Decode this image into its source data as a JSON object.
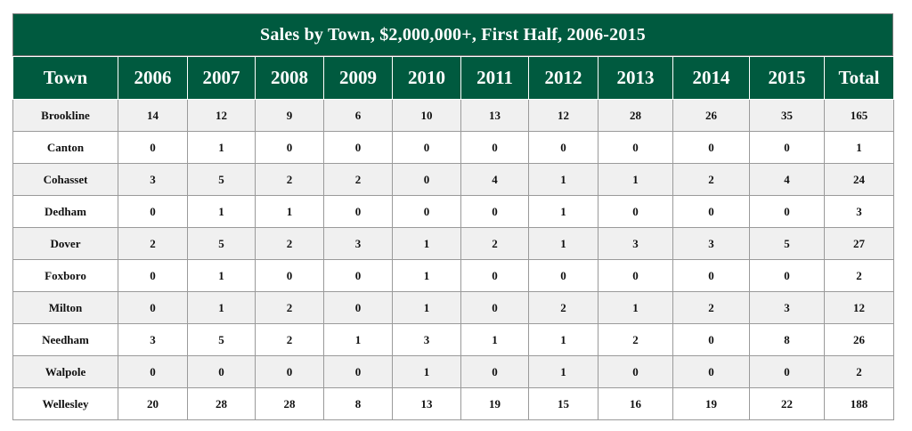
{
  "chart_data": {
    "type": "table",
    "title": "Sales by Town, $2,000,000+, First Half, 2006-2015",
    "columns": [
      "Town",
      "2006",
      "2007",
      "2008",
      "2009",
      "2010",
      "2011",
      "2012",
      "2013",
      "2014",
      "2015",
      "Total"
    ],
    "rows": [
      [
        "Brookline",
        "14",
        "12",
        "9",
        "6",
        "10",
        "13",
        "12",
        "28",
        "26",
        "35",
        "165"
      ],
      [
        "Canton",
        "0",
        "1",
        "0",
        "0",
        "0",
        "0",
        "0",
        "0",
        "0",
        "0",
        "1"
      ],
      [
        "Cohasset",
        "3",
        "5",
        "2",
        "2",
        "0",
        "4",
        "1",
        "1",
        "2",
        "4",
        "24"
      ],
      [
        "Dedham",
        "0",
        "1",
        "1",
        "0",
        "0",
        "0",
        "1",
        "0",
        "0",
        "0",
        "3"
      ],
      [
        "Dover",
        "2",
        "5",
        "2",
        "3",
        "1",
        "2",
        "1",
        "3",
        "3",
        "5",
        "27"
      ],
      [
        "Foxboro",
        "0",
        "1",
        "0",
        "0",
        "1",
        "0",
        "0",
        "0",
        "0",
        "0",
        "2"
      ],
      [
        "Milton",
        "0",
        "1",
        "2",
        "0",
        "1",
        "0",
        "2",
        "1",
        "2",
        "3",
        "12"
      ],
      [
        "Needham",
        "3",
        "5",
        "2",
        "1",
        "3",
        "1",
        "1",
        "2",
        "0",
        "8",
        "26"
      ],
      [
        "Walpole",
        "0",
        "0",
        "0",
        "0",
        "1",
        "0",
        "1",
        "0",
        "0",
        "0",
        "2"
      ],
      [
        "Wellesley",
        "20",
        "28",
        "28",
        "8",
        "13",
        "19",
        "15",
        "16",
        "19",
        "22",
        "188"
      ]
    ]
  },
  "colors": {
    "header_bg": "#005a3f",
    "header_text": "#ffffff",
    "row_shade": "#f0f0f0",
    "grid": "#9a9a9a"
  }
}
